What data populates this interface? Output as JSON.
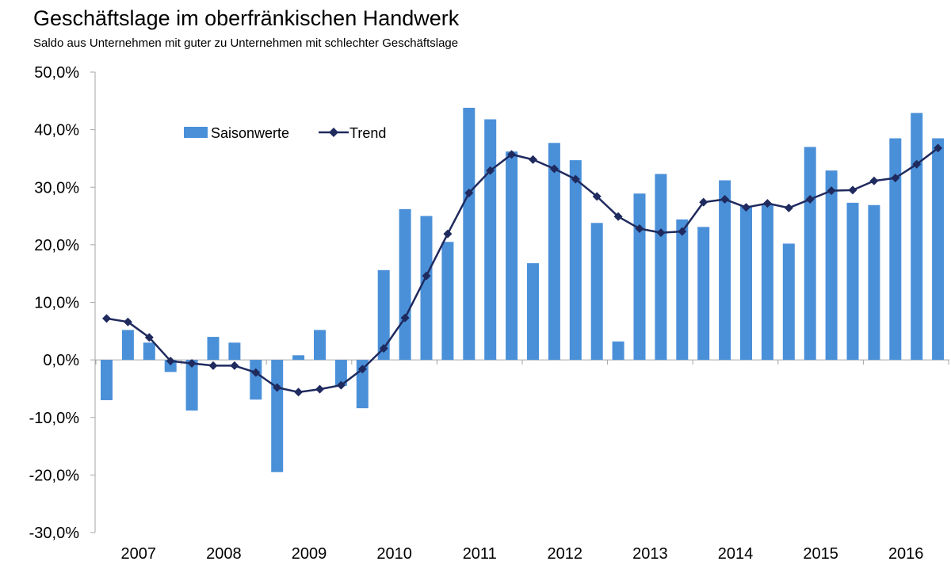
{
  "chart_data": {
    "type": "bar",
    "title": "Geschäftslage im oberfränkischen Handwerk",
    "subtitle": "Saldo aus Unternehmen mit guter zu Unternehmen mit schlechter Geschäftslage",
    "xlabel": "",
    "ylabel": "",
    "ylim": [
      -30,
      50
    ],
    "y_ticks": [
      "50,0%",
      "40,0%",
      "30,0%",
      "20,0%",
      "10,0%",
      "0,0%",
      "-10,0%",
      "-20,0%",
      "-30,0%"
    ],
    "year_labels": [
      "2007",
      "2008",
      "2009",
      "2010",
      "2011",
      "2012",
      "2013",
      "2014",
      "2015",
      "2016"
    ],
    "quarters_per_year": 4,
    "legend_position": "top-left",
    "grid": false,
    "colors": {
      "bars": "#4a90d9",
      "trend": "#1f2a5e"
    },
    "series": [
      {
        "name": "Saisonwerte",
        "type": "bar",
        "values": [
          -7.0,
          5.2,
          3.0,
          -2.1,
          -8.8,
          4.0,
          3.0,
          -6.9,
          -19.5,
          0.8,
          5.2,
          -4.5,
          -8.4,
          15.6,
          26.2,
          25.0,
          20.5,
          43.8,
          41.8,
          36.2,
          16.8,
          37.7,
          34.7,
          23.8,
          3.2,
          28.9,
          32.3,
          24.4,
          23.1,
          31.2,
          26.8,
          27.0,
          20.2,
          37.0,
          32.9,
          27.3,
          26.9,
          38.5,
          42.9,
          38.5
        ]
      },
      {
        "name": "Trend",
        "type": "line",
        "values": [
          7.2,
          6.6,
          3.9,
          -0.2,
          -0.6,
          -1.0,
          -1.0,
          -2.2,
          -4.8,
          -5.6,
          -5.1,
          -4.4,
          -1.6,
          2.0,
          7.3,
          14.6,
          21.9,
          29.0,
          32.9,
          35.7,
          34.8,
          33.2,
          31.4,
          28.4,
          24.9,
          22.8,
          22.1,
          22.3,
          27.4,
          27.9,
          26.5,
          27.2,
          26.4,
          27.9,
          29.4,
          29.5,
          31.1,
          31.6,
          34.0,
          36.8
        ]
      }
    ]
  }
}
